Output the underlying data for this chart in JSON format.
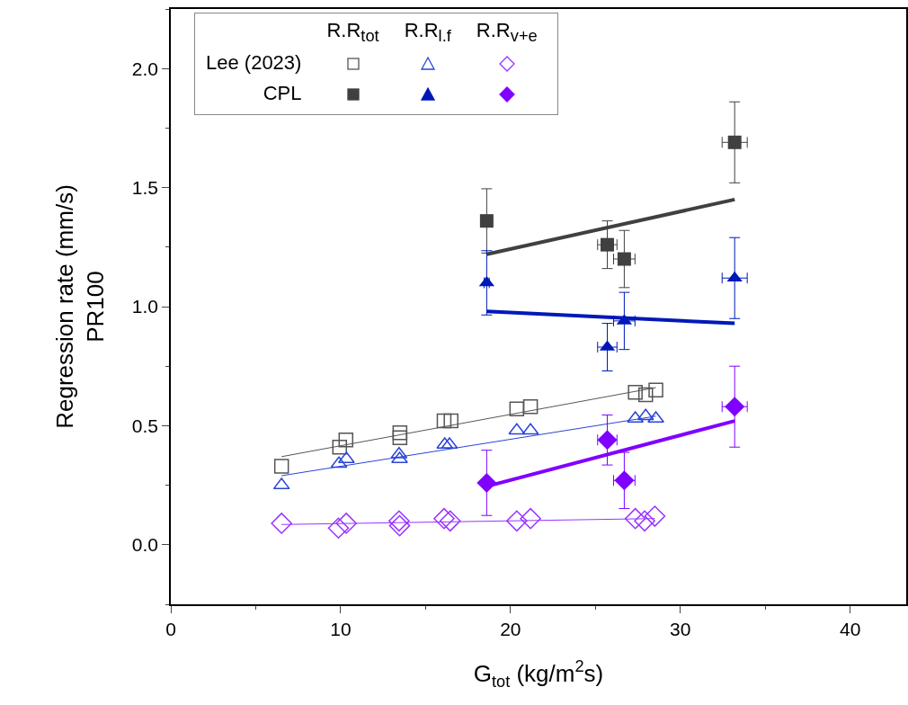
{
  "chart_data": {
    "type": "scatter",
    "xlabel": "G$_{tot}$ (kg/m$^{2}$s)",
    "ylabel": "Regression rate (mm/s)\nPR100",
    "xlim": [
      0,
      43.3
    ],
    "xticks": [
      0,
      10,
      20,
      30,
      40
    ],
    "ylim": [
      -0.25,
      2.25
    ],
    "yticks": [
      {
        "value": 0,
        "label": "0.0"
      },
      0.5,
      {
        "value": 1,
        "label": "1.0"
      },
      1.5,
      {
        "value": 2,
        "label": "2.0"
      }
    ],
    "grid": false,
    "legend": "top left",
    "annotations": [
      "R.R$_{tot}$",
      "R.R$_{l.f}$",
      "R.R$_{v+e}$"
    ],
    "series": [
      {
        "name": "Lee (2023)",
        "marker": "square",
        "color": "#555555",
        "x": [
          6.52,
          9.94,
          10.31,
          13.49,
          13.49,
          16.09,
          16.5,
          20.37,
          21.18,
          27.35,
          27.96,
          28.56
        ],
        "values": [
          0.33,
          0.41,
          0.44,
          0.47,
          0.45,
          0.52,
          0.52,
          0.57,
          0.58,
          0.64,
          0.63,
          0.65
        ]
      },
      {
        "type": "line",
        "color": "#555555",
        "x": [
          6.52,
          28.56
        ],
        "values": [
          0.37,
          0.66
        ]
      },
      {
        "marker": "triangle",
        "color": "#2a44d6",
        "x": [
          6.52,
          9.9,
          10.34,
          13.44,
          13.47,
          16.13,
          16.41,
          20.37,
          21.18,
          27.35,
          27.96,
          28.56
        ],
        "values": [
          0.25,
          0.34,
          0.36,
          0.38,
          0.36,
          0.42,
          0.42,
          0.48,
          0.48,
          0.53,
          0.54,
          0.53
        ]
      },
      {
        "type": "line",
        "color": "#2a44d6",
        "x": [
          6.52,
          28.56
        ],
        "values": [
          0.29,
          0.54
        ]
      },
      {
        "marker": "diamond",
        "color": "#9933ff",
        "x": [
          6.52,
          9.87,
          10.33,
          13.44,
          13.47,
          16.09,
          16.45,
          20.37,
          21.18,
          27.35,
          27.9,
          28.5
        ],
        "values": [
          0.09,
          0.07,
          0.09,
          0.1,
          0.08,
          0.11,
          0.1,
          0.1,
          0.11,
          0.11,
          0.1,
          0.12
        ]
      },
      {
        "type": "line",
        "color": "#9933ff",
        "x": [
          6.52,
          28.5
        ],
        "values": [
          0.085,
          0.11
        ]
      },
      {
        "name": "CPL",
        "marker": "square",
        "color": "#404040",
        "x": [
          18.6,
          25.7,
          26.7,
          33.2
        ],
        "values": [
          1.36,
          1.26,
          1.2,
          1.69
        ],
        "errors": [
          0.135,
          0.1,
          0.12,
          0.17
        ],
        "xerrors": [
          0.15,
          0.57,
          0.63,
          0.74
        ]
      },
      {
        "type": "line",
        "color": "#404040",
        "x": [
          18.6,
          33.2
        ],
        "values": [
          1.22,
          1.45
        ]
      },
      {
        "marker": "triangle",
        "color": "#0018b8",
        "x": [
          18.6,
          25.7,
          26.7,
          33.2
        ],
        "values": [
          1.1,
          0.83,
          0.94,
          1.12
        ],
        "errors": [
          0.135,
          0.1,
          0.12,
          0.17
        ],
        "xerrors": [
          0.15,
          0.57,
          0.63,
          0.74
        ]
      },
      {
        "type": "line",
        "color": "#0018b8",
        "x": [
          18.6,
          33.2
        ],
        "values": [
          0.98,
          0.93
        ]
      },
      {
        "marker": "diamond",
        "color": "#8000ff",
        "x": [
          18.6,
          25.7,
          26.7,
          33.2
        ],
        "values": [
          0.26,
          0.44,
          0.27,
          0.58
        ],
        "errors": [
          0.137,
          0.105,
          0.118,
          0.17
        ],
        "xerrors": [
          0.15,
          0.57,
          0.63,
          0.74
        ]
      },
      {
        "type": "line",
        "color": "#8000ff",
        "x": [
          18.6,
          33.2
        ],
        "values": [
          0.245,
          0.52
        ]
      }
    ]
  }
}
